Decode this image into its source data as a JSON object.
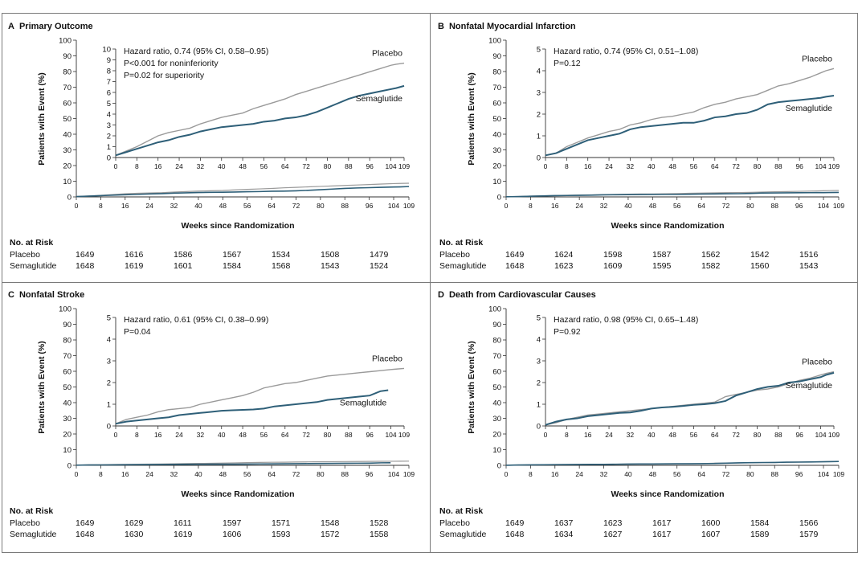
{
  "chart_data": [
    {
      "type": "line",
      "panel_letter": "A",
      "title": "Primary Outcome",
      "xlabel": "Weeks since Randomization",
      "ylabel": "Patients with Event (%)",
      "xlim": [
        0,
        109
      ],
      "ylim": [
        0,
        100
      ],
      "x_ticks": [
        0,
        8,
        16,
        24,
        32,
        40,
        48,
        56,
        64,
        72,
        80,
        88,
        96,
        104,
        109
      ],
      "y_ticks": [
        0,
        10,
        20,
        30,
        40,
        50,
        60,
        70,
        80,
        90,
        100
      ],
      "inset": {
        "ylim": [
          0,
          10
        ],
        "y_ticks": [
          0,
          1,
          2,
          3,
          4,
          5,
          6,
          7,
          8,
          9,
          10
        ],
        "annotations": [
          "Hazard ratio, 0.74 (95% CI, 0.58–0.95)",
          "P<0.001 for noninferiority",
          "P=0.02 for superiority"
        ]
      },
      "series": [
        {
          "name": "Placebo",
          "x": [
            0,
            4,
            8,
            12,
            16,
            20,
            24,
            28,
            32,
            36,
            40,
            44,
            48,
            52,
            56,
            60,
            64,
            68,
            72,
            76,
            80,
            84,
            88,
            92,
            96,
            100,
            104,
            106,
            109
          ],
          "y": [
            0.2,
            0.6,
            1.0,
            1.5,
            2.0,
            2.3,
            2.5,
            2.7,
            3.1,
            3.4,
            3.7,
            3.9,
            4.1,
            4.5,
            4.8,
            5.1,
            5.4,
            5.8,
            6.1,
            6.4,
            6.7,
            7.0,
            7.3,
            7.6,
            7.9,
            8.2,
            8.5,
            8.6,
            8.7
          ]
        },
        {
          "name": "Semaglutide",
          "x": [
            0,
            4,
            8,
            12,
            16,
            20,
            24,
            28,
            32,
            36,
            40,
            44,
            48,
            52,
            56,
            60,
            64,
            68,
            72,
            76,
            80,
            84,
            88,
            92,
            96,
            100,
            104,
            106,
            109
          ],
          "y": [
            0.2,
            0.5,
            0.8,
            1.1,
            1.4,
            1.6,
            1.9,
            2.1,
            2.4,
            2.6,
            2.8,
            2.9,
            3.0,
            3.1,
            3.3,
            3.4,
            3.6,
            3.7,
            3.9,
            4.2,
            4.6,
            5.0,
            5.4,
            5.7,
            5.9,
            6.1,
            6.3,
            6.4,
            6.6
          ]
        }
      ],
      "at_risk": {
        "header": "No. at Risk",
        "rows": [
          {
            "label": "Placebo",
            "values": [
              "1649",
              "1616",
              "1586",
              "1567",
              "1534",
              "1508",
              "1479"
            ]
          },
          {
            "label": "Semaglutide",
            "values": [
              "1648",
              "1619",
              "1601",
              "1584",
              "1568",
              "1543",
              "1524"
            ]
          }
        ]
      }
    },
    {
      "type": "line",
      "panel_letter": "B",
      "title": "Nonfatal Myocardial Infarction",
      "xlabel": "Weeks since Randomization",
      "ylabel": "Patients with Event (%)",
      "xlim": [
        0,
        109
      ],
      "ylim": [
        0,
        100
      ],
      "x_ticks": [
        0,
        8,
        16,
        24,
        32,
        40,
        48,
        56,
        64,
        72,
        80,
        88,
        96,
        104,
        109
      ],
      "y_ticks": [
        0,
        10,
        20,
        30,
        40,
        50,
        60,
        70,
        80,
        90,
        100
      ],
      "inset": {
        "ylim": [
          0,
          5
        ],
        "y_ticks": [
          0,
          1,
          2,
          3,
          4,
          5
        ],
        "annotations": [
          "Hazard ratio, 0.74 (95% CI, 0.51–1.08)",
          "P=0.12"
        ]
      },
      "series": [
        {
          "name": "Placebo",
          "x": [
            0,
            4,
            8,
            12,
            16,
            20,
            24,
            28,
            32,
            36,
            40,
            44,
            48,
            52,
            56,
            60,
            64,
            68,
            72,
            76,
            80,
            84,
            88,
            92,
            96,
            100,
            104,
            106,
            109
          ],
          "y": [
            0.1,
            0.2,
            0.5,
            0.7,
            0.9,
            1.05,
            1.2,
            1.3,
            1.5,
            1.6,
            1.75,
            1.85,
            1.9,
            2.0,
            2.1,
            2.3,
            2.45,
            2.55,
            2.7,
            2.8,
            2.9,
            3.1,
            3.3,
            3.4,
            3.55,
            3.7,
            3.9,
            4.0,
            4.1
          ]
        },
        {
          "name": "Semaglutide",
          "x": [
            0,
            4,
            8,
            12,
            16,
            20,
            24,
            28,
            32,
            36,
            40,
            44,
            48,
            52,
            56,
            60,
            64,
            68,
            72,
            76,
            80,
            84,
            88,
            92,
            96,
            100,
            104,
            106,
            109
          ],
          "y": [
            0.1,
            0.2,
            0.4,
            0.6,
            0.8,
            0.9,
            1.0,
            1.1,
            1.3,
            1.4,
            1.45,
            1.5,
            1.55,
            1.6,
            1.6,
            1.7,
            1.85,
            1.9,
            2.0,
            2.05,
            2.2,
            2.45,
            2.55,
            2.6,
            2.65,
            2.7,
            2.75,
            2.8,
            2.85
          ]
        }
      ],
      "at_risk": {
        "header": "No. at Risk",
        "rows": [
          {
            "label": "Placebo",
            "values": [
              "1649",
              "1624",
              "1598",
              "1587",
              "1562",
              "1542",
              "1516"
            ]
          },
          {
            "label": "Semaglutide",
            "values": [
              "1648",
              "1623",
              "1609",
              "1595",
              "1582",
              "1560",
              "1543"
            ]
          }
        ]
      }
    },
    {
      "type": "line",
      "panel_letter": "C",
      "title": "Nonfatal Stroke",
      "xlabel": "Weeks since Randomization",
      "ylabel": "Patients with Event (%)",
      "xlim": [
        0,
        109
      ],
      "ylim": [
        0,
        100
      ],
      "x_ticks": [
        0,
        8,
        16,
        24,
        32,
        40,
        48,
        56,
        64,
        72,
        80,
        88,
        96,
        104,
        109
      ],
      "y_ticks": [
        0,
        10,
        20,
        30,
        40,
        50,
        60,
        70,
        80,
        90,
        100
      ],
      "inset": {
        "ylim": [
          0,
          5
        ],
        "y_ticks": [
          0,
          1,
          2,
          3,
          4,
          5
        ],
        "annotations": [
          "Hazard ratio, 0.61 (95% CI, 0.38–0.99)",
          "P=0.04"
        ]
      },
      "series": [
        {
          "name": "Placebo",
          "x": [
            0,
            4,
            8,
            12,
            16,
            20,
            24,
            28,
            32,
            36,
            40,
            44,
            48,
            52,
            56,
            60,
            64,
            68,
            72,
            76,
            80,
            84,
            88,
            92,
            96,
            100,
            104,
            106,
            109
          ],
          "y": [
            0.1,
            0.3,
            0.4,
            0.5,
            0.65,
            0.75,
            0.8,
            0.85,
            1.0,
            1.1,
            1.2,
            1.3,
            1.4,
            1.55,
            1.75,
            1.85,
            1.95,
            2.0,
            2.1,
            2.2,
            2.3,
            2.35,
            2.4,
            2.45,
            2.5,
            2.55,
            2.6,
            2.62,
            2.65
          ]
        },
        {
          "name": "Semaglutide",
          "x": [
            0,
            4,
            8,
            12,
            16,
            20,
            24,
            28,
            32,
            36,
            40,
            44,
            48,
            52,
            56,
            60,
            64,
            68,
            72,
            76,
            80,
            84,
            88,
            92,
            96,
            100,
            103
          ],
          "y": [
            0.1,
            0.2,
            0.25,
            0.3,
            0.35,
            0.4,
            0.5,
            0.55,
            0.6,
            0.65,
            0.7,
            0.72,
            0.74,
            0.76,
            0.8,
            0.9,
            0.95,
            1.0,
            1.05,
            1.1,
            1.2,
            1.25,
            1.3,
            1.35,
            1.4,
            1.6,
            1.65
          ]
        }
      ],
      "at_risk": {
        "header": "No. at Risk",
        "rows": [
          {
            "label": "Placebo",
            "values": [
              "1649",
              "1629",
              "1611",
              "1597",
              "1571",
              "1548",
              "1528"
            ]
          },
          {
            "label": "Semaglutide",
            "values": [
              "1648",
              "1630",
              "1619",
              "1606",
              "1593",
              "1572",
              "1558"
            ]
          }
        ]
      }
    },
    {
      "type": "line",
      "panel_letter": "D",
      "title": "Death from Cardiovascular Causes",
      "xlabel": "Weeks since Randomization",
      "ylabel": "Patients with Event (%)",
      "xlim": [
        0,
        109
      ],
      "ylim": [
        0,
        100
      ],
      "x_ticks": [
        0,
        8,
        16,
        24,
        32,
        40,
        48,
        56,
        64,
        72,
        80,
        88,
        96,
        104,
        109
      ],
      "y_ticks": [
        0,
        10,
        20,
        30,
        40,
        50,
        60,
        70,
        80,
        90,
        100
      ],
      "inset": {
        "ylim": [
          0,
          5
        ],
        "y_ticks": [
          0,
          1,
          2,
          3,
          4,
          5
        ],
        "annotations": [
          "Hazard ratio, 0.98 (95% CI, 0.65–1.48)",
          "P=0.92"
        ]
      },
      "series": [
        {
          "name": "Placebo",
          "x": [
            0,
            4,
            8,
            12,
            16,
            20,
            24,
            28,
            32,
            36,
            40,
            44,
            48,
            52,
            56,
            60,
            64,
            68,
            72,
            76,
            80,
            84,
            88,
            92,
            96,
            100,
            104,
            106,
            109
          ],
          "y": [
            0.05,
            0.15,
            0.3,
            0.4,
            0.5,
            0.55,
            0.6,
            0.65,
            0.7,
            0.75,
            0.8,
            0.85,
            0.9,
            0.95,
            1.0,
            1.05,
            1.1,
            1.35,
            1.45,
            1.55,
            1.65,
            1.7,
            1.8,
            1.95,
            2.1,
            2.2,
            2.35,
            2.42,
            2.5
          ]
        },
        {
          "name": "Semaglutide",
          "x": [
            0,
            4,
            8,
            12,
            16,
            20,
            24,
            28,
            32,
            36,
            40,
            44,
            48,
            52,
            56,
            60,
            64,
            68,
            72,
            76,
            80,
            84,
            88,
            92,
            96,
            100,
            104,
            106,
            109
          ],
          "y": [
            0.05,
            0.2,
            0.3,
            0.35,
            0.45,
            0.5,
            0.55,
            0.6,
            0.62,
            0.7,
            0.8,
            0.85,
            0.88,
            0.92,
            0.97,
            1.0,
            1.05,
            1.15,
            1.4,
            1.55,
            1.7,
            1.8,
            1.85,
            2.0,
            2.05,
            2.15,
            2.25,
            2.35,
            2.45
          ]
        }
      ],
      "at_risk": {
        "header": "No. at Risk",
        "rows": [
          {
            "label": "Placebo",
            "values": [
              "1649",
              "1637",
              "1623",
              "1617",
              "1600",
              "1584",
              "1566"
            ]
          },
          {
            "label": "Semaglutide",
            "values": [
              "1648",
              "1634",
              "1627",
              "1617",
              "1607",
              "1589",
              "1579"
            ]
          }
        ]
      }
    }
  ],
  "colors": {
    "placebo": "#9a9a9a",
    "semaglutide": "#2e5f78",
    "axis": "#333333",
    "border": "#7a7a7a"
  }
}
